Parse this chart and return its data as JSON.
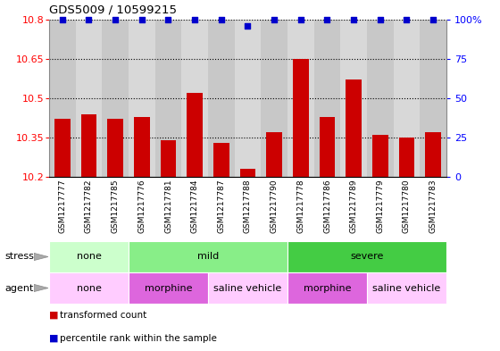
{
  "title": "GDS5009 / 10599215",
  "samples": [
    "GSM1217777",
    "GSM1217782",
    "GSM1217785",
    "GSM1217776",
    "GSM1217781",
    "GSM1217784",
    "GSM1217787",
    "GSM1217788",
    "GSM1217790",
    "GSM1217778",
    "GSM1217786",
    "GSM1217789",
    "GSM1217779",
    "GSM1217780",
    "GSM1217783"
  ],
  "bar_values": [
    10.42,
    10.44,
    10.42,
    10.43,
    10.34,
    10.52,
    10.33,
    10.23,
    10.37,
    10.65,
    10.43,
    10.57,
    10.36,
    10.35,
    10.37
  ],
  "bar_color": "#cc0000",
  "dot_color": "#0000cc",
  "ylim_left": [
    10.2,
    10.8
  ],
  "ylim_right": [
    0,
    100
  ],
  "yticks_left": [
    10.2,
    10.35,
    10.5,
    10.65,
    10.8
  ],
  "yticks_right": [
    0,
    25,
    50,
    75,
    100
  ],
  "grid_values": [
    10.35,
    10.5,
    10.65
  ],
  "stress_groups": [
    {
      "label": "none",
      "start": 0,
      "end": 3,
      "color": "#ccffcc"
    },
    {
      "label": "mild",
      "start": 3,
      "end": 9,
      "color": "#88ee88"
    },
    {
      "label": "severe",
      "start": 9,
      "end": 15,
      "color": "#44cc44"
    }
  ],
  "agent_groups": [
    {
      "label": "none",
      "start": 0,
      "end": 3,
      "color": "#ffccff"
    },
    {
      "label": "morphine",
      "start": 3,
      "end": 6,
      "color": "#dd66dd"
    },
    {
      "label": "saline vehicle",
      "start": 6,
      "end": 9,
      "color": "#ffccff"
    },
    {
      "label": "morphine",
      "start": 9,
      "end": 12,
      "color": "#dd66dd"
    },
    {
      "label": "saline vehicle",
      "start": 12,
      "end": 15,
      "color": "#ffccff"
    }
  ],
  "bar_width": 0.6,
  "background_color": "#ffffff",
  "legend_items": [
    {
      "label": "transformed count",
      "color": "#cc0000"
    },
    {
      "label": "percentile rank within the sample",
      "color": "#0000cc"
    }
  ]
}
